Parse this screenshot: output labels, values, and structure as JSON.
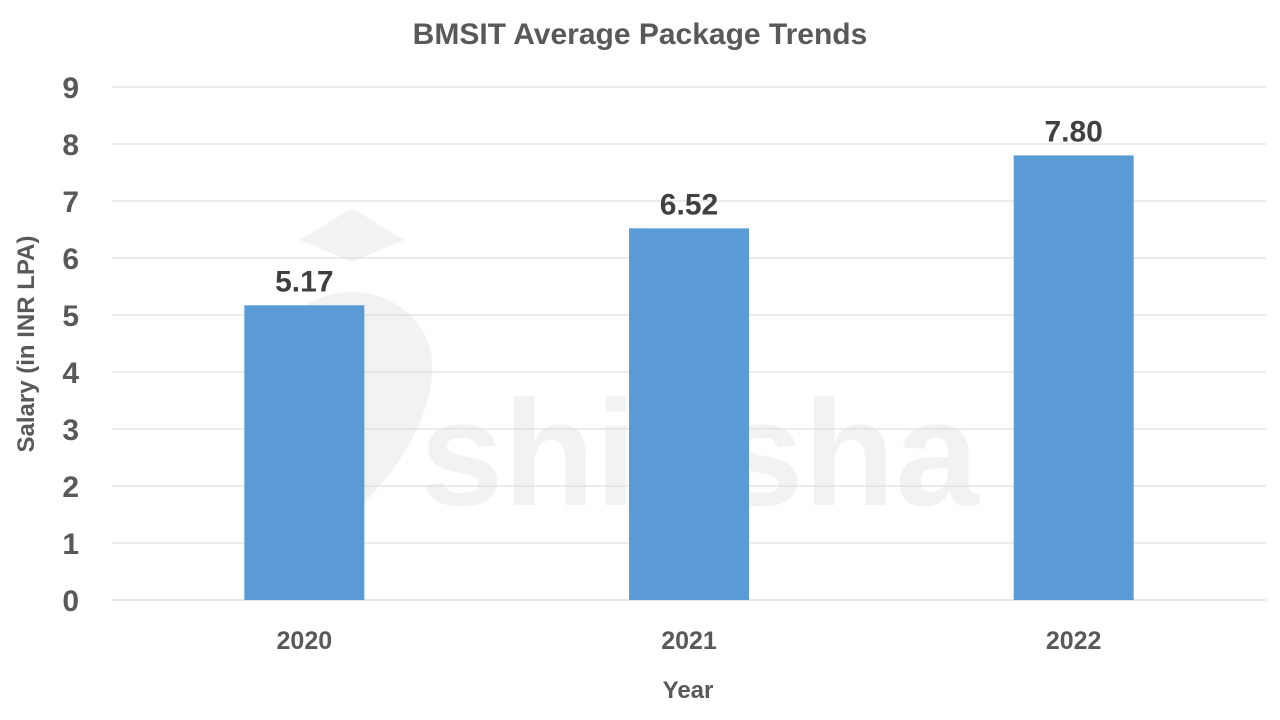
{
  "watermark": {
    "text": "shiksha"
  },
  "colors": {
    "bar": "#5b9bd5",
    "text": "#595959",
    "data_label": "#404040",
    "grid": "#d9d9d9"
  },
  "chart_data": {
    "type": "bar",
    "title": "BMSIT Average Package Trends",
    "xlabel": "Year",
    "ylabel": "Salary (in INR LPA)",
    "categories": [
      "2020",
      "2021",
      "2022"
    ],
    "values": [
      5.17,
      6.52,
      7.8
    ],
    "data_labels": [
      "5.17",
      "6.52",
      "7.80"
    ],
    "yticks": [
      "0",
      "1",
      "2",
      "3",
      "4",
      "5",
      "6",
      "7",
      "8",
      "9"
    ],
    "ylim": [
      0,
      9
    ],
    "grid": true,
    "legend": "none"
  }
}
